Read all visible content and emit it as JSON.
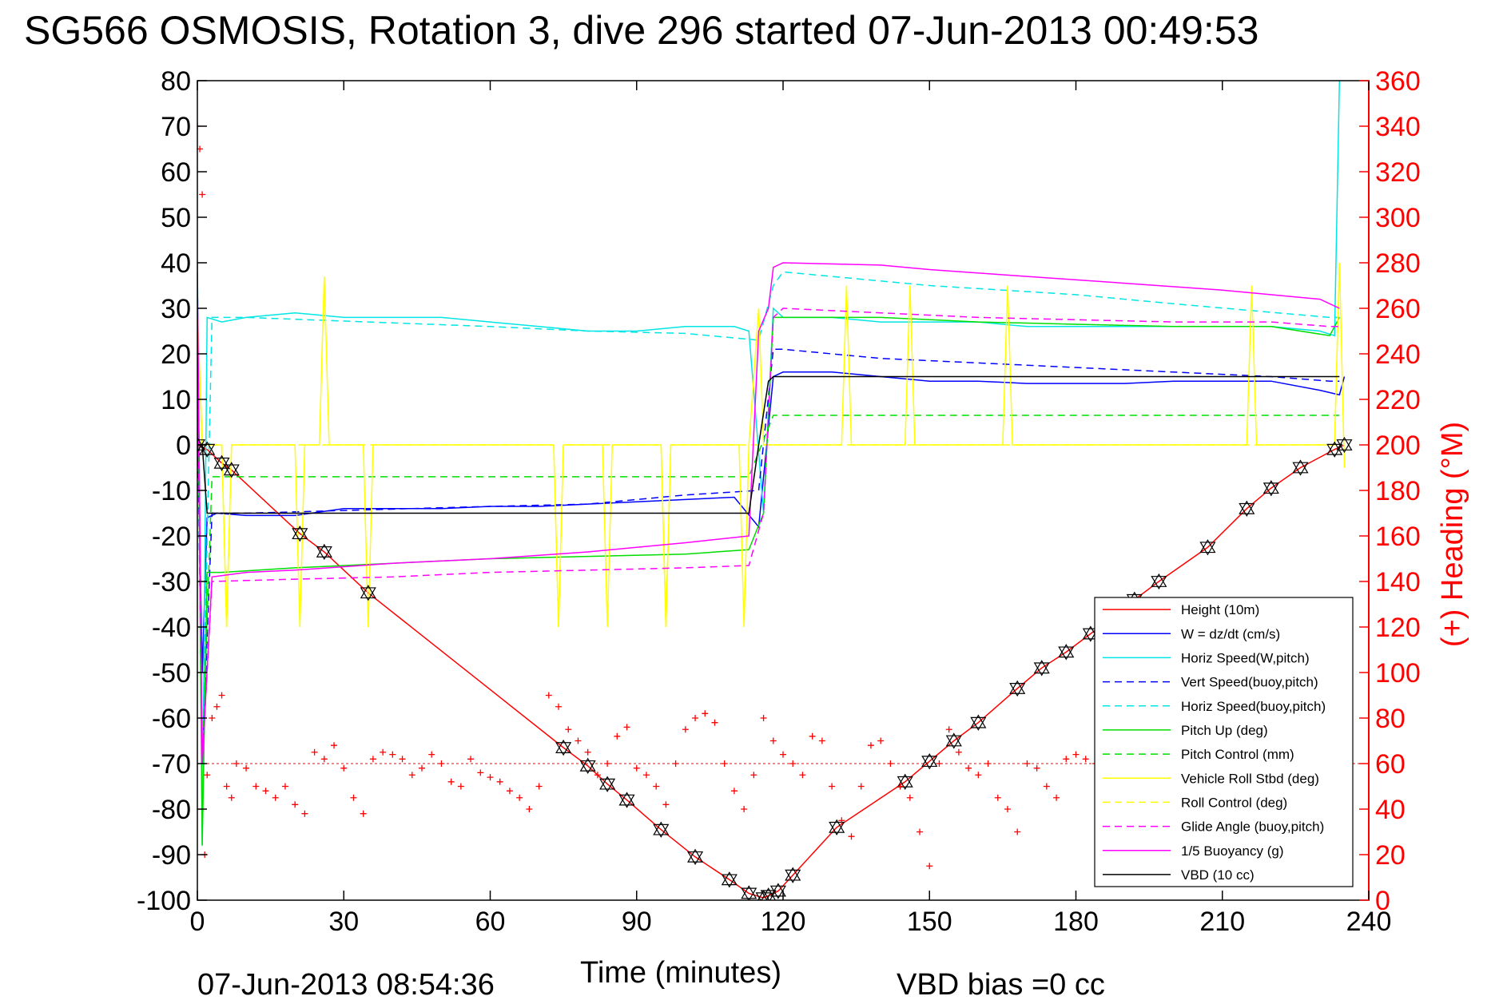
{
  "chart_data": {
    "type": "line",
    "title": "SG566 OSMOSIS, Rotation 3, dive 296 started 07-Jun-2013 00:49:53",
    "xlabel": "Time (minutes)",
    "ylabel": "",
    "y2label": "(+) Heading (°M)",
    "xlim": [
      0,
      240
    ],
    "ylim": [
      -100,
      80
    ],
    "y2lim": [
      0,
      360
    ],
    "xticks": [
      "0",
      "30",
      "60",
      "90",
      "120",
      "150",
      "180",
      "210",
      "240"
    ],
    "yticks": [
      "80",
      "70",
      "60",
      "50",
      "40",
      "30",
      "20",
      "10",
      "0",
      "-10",
      "-20",
      "-30",
      "-40",
      "-50",
      "-60",
      "-70",
      "-80",
      "-90",
      "-100"
    ],
    "y2ticks": [
      "360",
      "340",
      "320",
      "300",
      "280",
      "260",
      "240",
      "220",
      "200",
      "180",
      "160",
      "140",
      "120",
      "100",
      "80",
      "60",
      "40",
      "20",
      "0"
    ],
    "grid": false,
    "legend_position": "bottom-right",
    "footer_left": "07-Jun-2013 08:54:36",
    "footer_right": "VBD bias =0 cc",
    "colors": {
      "height": "#ff0000",
      "w": "#0000ff",
      "horiz_speed": "#00e5e5",
      "pitch": "#00dd00",
      "roll": "#ffff00",
      "glide": "#ff00ff",
      "vbd": "#000000",
      "heading": "#ff0000"
    },
    "series": [
      {
        "name": "Height (10m)",
        "color": "#ff0000",
        "dash": "solid",
        "x": [
          0,
          2,
          5,
          7,
          21,
          26,
          35,
          75,
          80,
          84,
          88,
          95,
          102,
          109,
          113,
          116,
          117,
          119,
          122,
          131,
          145,
          150,
          155,
          160,
          168,
          173,
          178,
          183,
          192,
          197,
          207,
          215,
          220,
          226,
          233,
          235
        ],
        "y": [
          0,
          -1,
          -4,
          -5.5,
          -19.5,
          -23.5,
          -32.5,
          -66.5,
          -70.5,
          -74.5,
          -78,
          -84.5,
          -90.5,
          -95.5,
          -98.5,
          -99.5,
          -99,
          -98,
          -94.5,
          -84,
          -74,
          -69.5,
          -65,
          -61,
          -53.5,
          -49,
          -45.5,
          -41.5,
          -34,
          -30,
          -22.5,
          -14,
          -9.5,
          -5,
          -1,
          0
        ]
      },
      {
        "name": "W = dz/dt (cm/s)",
        "color": "#0000ff",
        "dash": "solid",
        "x": [
          0,
          1,
          2,
          4,
          10,
          20,
          30,
          40,
          50,
          60,
          70,
          80,
          90,
          100,
          110,
          115,
          118,
          120,
          130,
          140,
          150,
          160,
          170,
          180,
          190,
          200,
          210,
          220,
          230,
          234,
          235
        ],
        "y": [
          10,
          -50,
          -16,
          -15,
          -15.5,
          -15.5,
          -14,
          -14,
          -14,
          -13.5,
          -13.5,
          -13,
          -12.5,
          -12,
          -11.5,
          -18,
          15,
          16,
          16,
          15,
          14,
          14,
          13.5,
          13.5,
          13.5,
          14,
          14,
          14,
          12,
          11,
          15
        ]
      },
      {
        "name": "Horiz Speed(W,pitch)",
        "color": "#00e5e5",
        "dash": "solid",
        "x": [
          0,
          1,
          2,
          5,
          10,
          20,
          30,
          40,
          50,
          60,
          70,
          80,
          90,
          100,
          110,
          113,
          116,
          118,
          120,
          130,
          140,
          150,
          160,
          170,
          180,
          190,
          200,
          210,
          220,
          230,
          233,
          234
        ],
        "y": [
          40,
          -88,
          28,
          27,
          28,
          29,
          28,
          28,
          28,
          27,
          26,
          25,
          25,
          26,
          26,
          25,
          -15,
          30,
          28,
          28,
          27,
          27,
          27,
          26,
          26,
          26,
          26,
          26,
          26,
          25,
          24,
          80
        ]
      },
      {
        "name": "Vert Speed(buoy,pitch)",
        "color": "#0000ff",
        "dash": "dash",
        "x": [
          0,
          1,
          3,
          10,
          60,
          80,
          100,
          115,
          118,
          120,
          140,
          180,
          220,
          232,
          234
        ],
        "y": [
          10,
          -70,
          -15,
          -15,
          -13.5,
          -13,
          -11,
          -10,
          21,
          21,
          19,
          17,
          15,
          14,
          14
        ]
      },
      {
        "name": "Horiz Speed(buoy,pitch)",
        "color": "#00e5e5",
        "dash": "dash",
        "x": [
          0,
          1,
          3,
          10,
          60,
          80,
          100,
          115,
          118,
          120,
          150,
          180,
          200,
          232,
          234
        ],
        "y": [
          40,
          -70,
          28,
          28,
          26,
          25,
          24.5,
          23,
          35,
          38,
          35,
          33,
          31,
          28,
          28
        ]
      },
      {
        "name": "Pitch Up (deg)",
        "color": "#00dd00",
        "dash": "solid",
        "x": [
          0,
          1,
          2,
          5,
          20,
          40,
          60,
          80,
          100,
          113,
          116,
          118,
          120,
          140,
          160,
          180,
          200,
          220,
          232,
          234
        ],
        "y": [
          30,
          -88,
          -28,
          -28,
          -27,
          -26,
          -25,
          -24.5,
          -24,
          -23,
          -15,
          28,
          28,
          28,
          27,
          26.5,
          26,
          26,
          24,
          28
        ]
      },
      {
        "name": "Pitch Control (mm)",
        "color": "#00dd00",
        "dash": "dash",
        "x": [
          1,
          3,
          113,
          118,
          234
        ],
        "y": [
          -70,
          -7,
          -7,
          6.5,
          6.5
        ]
      },
      {
        "name": "Vehicle Roll Stbd (deg)",
        "color": "#ffff00",
        "dash": "solid",
        "x": [
          0,
          1,
          2,
          5,
          6,
          7,
          20,
          21,
          22,
          25,
          26,
          27,
          30,
          34,
          35,
          36,
          70,
          73,
          74,
          75,
          80,
          83,
          84,
          85,
          95,
          96,
          97,
          100,
          111,
          112,
          113,
          115,
          116,
          118,
          120,
          132,
          133,
          134,
          140,
          145,
          146,
          147,
          150,
          160,
          165,
          166,
          167,
          180,
          190,
          200,
          210,
          215,
          216,
          217,
          225,
          233,
          234,
          235
        ],
        "y": [
          30,
          0,
          0,
          0,
          -40,
          0,
          0,
          -40,
          0,
          0,
          37,
          0,
          0,
          0,
          -40,
          0,
          0,
          0,
          -40,
          0,
          0,
          0,
          -40,
          0,
          0,
          -40,
          0,
          0,
          0,
          -40,
          0,
          30,
          0,
          0,
          0,
          0,
          35,
          0,
          0,
          0,
          35,
          0,
          0,
          0,
          0,
          35,
          0,
          0,
          0,
          0,
          0,
          0,
          35,
          0,
          0,
          0,
          40,
          -5
        ]
      },
      {
        "name": "Roll Control (deg)",
        "color": "#ffff00",
        "dash": "dash",
        "x": [
          0,
          1,
          5,
          6,
          7,
          73,
          74,
          75,
          95,
          96,
          97,
          120,
          180,
          233,
          234
        ],
        "y": [
          30,
          0,
          0,
          -40,
          0,
          0,
          -40,
          0,
          0,
          -40,
          0,
          0,
          0,
          0,
          40
        ]
      },
      {
        "name": "Glide Angle (buoy,pitch)",
        "color": "#ff00ff",
        "dash": "dash",
        "x": [
          0,
          1,
          3,
          20,
          40,
          60,
          80,
          100,
          113,
          116,
          118,
          120,
          140,
          160,
          180,
          200,
          220,
          232,
          234
        ],
        "y": [
          20,
          -70,
          -30,
          -29.5,
          -29,
          -28,
          -27.5,
          -27,
          -26.5,
          -15,
          28,
          30,
          29,
          28,
          27.5,
          27,
          27,
          26,
          26
        ]
      },
      {
        "name": "1/5 Buoyancy (g)",
        "color": "#ff00ff",
        "dash": "solid",
        "x": [
          0,
          1,
          3,
          10,
          20,
          40,
          60,
          80,
          100,
          113,
          115,
          117,
          118,
          120,
          140,
          150,
          170,
          190,
          210,
          230,
          234
        ],
        "y": [
          38,
          -70,
          -29,
          -28,
          -27.5,
          -26,
          -25,
          -23.5,
          -21.5,
          -20,
          25,
          30,
          39,
          40,
          39.5,
          38.5,
          37,
          35.5,
          34,
          32,
          30
        ]
      },
      {
        "name": "VBD (10 cc)",
        "color": "#000000",
        "dash": "solid",
        "x": [
          0,
          1,
          2,
          3,
          113,
          115,
          117,
          118,
          234
        ],
        "y": [
          0,
          0,
          -15,
          -15,
          -15,
          0,
          14,
          15,
          15
        ]
      }
    ],
    "heading_series": {
      "name": "Heading (°M)",
      "color": "#ff0000",
      "marker": "+",
      "axis": "right",
      "mean": 60,
      "x": [
        0,
        0.5,
        1,
        1.5,
        2,
        3,
        4,
        5,
        6,
        7,
        8,
        10,
        12,
        14,
        16,
        18,
        20,
        22,
        24,
        26,
        28,
        30,
        32,
        34,
        36,
        38,
        40,
        42,
        44,
        46,
        48,
        50,
        52,
        54,
        56,
        58,
        60,
        62,
        64,
        66,
        68,
        70,
        72,
        74,
        76,
        78,
        80,
        82,
        84,
        86,
        88,
        90,
        92,
        94,
        96,
        98,
        100,
        102,
        104,
        106,
        108,
        110,
        112,
        114,
        116,
        118,
        120,
        122,
        124,
        126,
        128,
        130,
        132,
        134,
        136,
        138,
        140,
        142,
        144,
        146,
        148,
        150,
        152,
        154,
        156,
        158,
        160,
        162,
        164,
        166,
        168,
        170,
        172,
        174,
        176,
        178,
        180,
        182,
        184,
        186,
        188,
        190,
        192,
        194,
        196,
        198,
        200,
        202,
        204,
        206,
        208,
        210,
        212,
        214,
        216,
        218,
        220,
        222,
        224,
        226,
        228,
        230,
        232,
        234
      ],
      "y": [
        340,
        330,
        310,
        20,
        55,
        80,
        85,
        90,
        50,
        45,
        60,
        58,
        50,
        48,
        45,
        50,
        42,
        38,
        65,
        62,
        68,
        58,
        45,
        38,
        62,
        65,
        64,
        62,
        55,
        58,
        64,
        60,
        52,
        50,
        62,
        56,
        54,
        52,
        48,
        45,
        40,
        50,
        90,
        85,
        75,
        70,
        65,
        55,
        60,
        72,
        76,
        58,
        55,
        50,
        42,
        60,
        75,
        80,
        82,
        78,
        60,
        48,
        40,
        55,
        80,
        70,
        64,
        60,
        55,
        72,
        70,
        50,
        35,
        28,
        50,
        68,
        70,
        60,
        50,
        45,
        30,
        15,
        60,
        75,
        65,
        58,
        55,
        60,
        45,
        40,
        30,
        60,
        58,
        50,
        45,
        62,
        64,
        62,
        60,
        55,
        50,
        62,
        66,
        55,
        40,
        62,
        66,
        60,
        55,
        42,
        45,
        62,
        60,
        58,
        45,
        60,
        64,
        60,
        50,
        62,
        60,
        55,
        45,
        60
      ]
    }
  }
}
